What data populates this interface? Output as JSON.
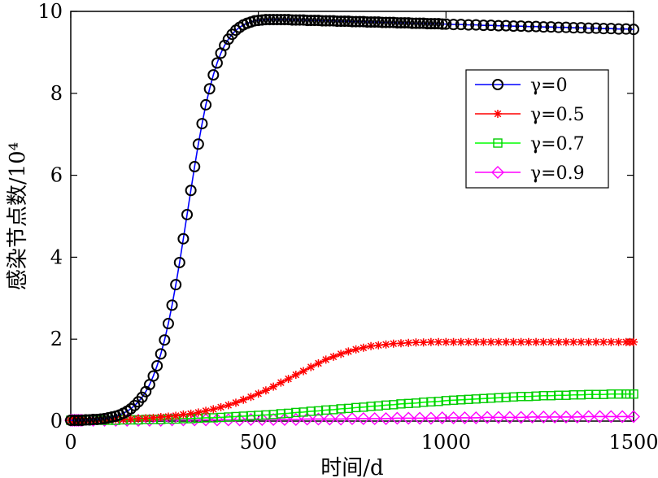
{
  "chart_data": {
    "type": "line",
    "xlabel": "时间/d",
    "ylabel": "感染节点数/10⁴",
    "xlim": [
      0,
      1500
    ],
    "ylim": [
      0,
      10
    ],
    "xticks": [
      0,
      500,
      1000,
      1500
    ],
    "yticks": [
      0,
      2,
      4,
      6,
      8,
      10
    ],
    "grid": false,
    "legend_position": "top-right",
    "series": [
      {
        "name": "γ=0",
        "line_color": "#0000ff",
        "marker": "circle",
        "marker_color": "#000000",
        "x": [
          0,
          10,
          20,
          30,
          40,
          50,
          60,
          70,
          80,
          90,
          100,
          110,
          120,
          130,
          140,
          150,
          160,
          170,
          180,
          190,
          200,
          210,
          220,
          230,
          240,
          250,
          260,
          270,
          280,
          290,
          300,
          310,
          320,
          330,
          340,
          350,
          360,
          370,
          380,
          390,
          400,
          410,
          420,
          430,
          440,
          450,
          460,
          470,
          480,
          490,
          500,
          510,
          520,
          530,
          540,
          550,
          560,
          570,
          580,
          590,
          600,
          610,
          620,
          630,
          640,
          650,
          660,
          670,
          680,
          690,
          700,
          710,
          720,
          730,
          740,
          750,
          760,
          770,
          780,
          790,
          800,
          810,
          820,
          830,
          840,
          850,
          860,
          870,
          880,
          890,
          900,
          910,
          920,
          930,
          940,
          950,
          960,
          970,
          980,
          990,
          1000,
          1020,
          1040,
          1060,
          1080,
          1100,
          1120,
          1140,
          1160,
          1180,
          1200,
          1220,
          1240,
          1260,
          1280,
          1300,
          1320,
          1340,
          1360,
          1380,
          1400,
          1420,
          1440,
          1460,
          1480,
          1500
        ],
        "y": [
          0.02,
          0.02,
          0.02,
          0.02,
          0.03,
          0.03,
          0.04,
          0.04,
          0.05,
          0.06,
          0.08,
          0.1,
          0.12,
          0.15,
          0.19,
          0.24,
          0.3,
          0.38,
          0.47,
          0.58,
          0.72,
          0.89,
          1.1,
          1.35,
          1.64,
          1.98,
          2.38,
          2.83,
          3.33,
          3.87,
          4.45,
          5.04,
          5.63,
          6.21,
          6.76,
          7.26,
          7.72,
          8.11,
          8.45,
          8.74,
          8.98,
          9.17,
          9.32,
          9.44,
          9.54,
          9.61,
          9.67,
          9.71,
          9.74,
          9.77,
          9.78,
          9.79,
          9.8,
          9.8,
          9.8,
          9.8,
          9.8,
          9.8,
          9.8,
          9.79,
          9.79,
          9.79,
          9.79,
          9.78,
          9.78,
          9.78,
          9.78,
          9.77,
          9.77,
          9.77,
          9.77,
          9.76,
          9.76,
          9.76,
          9.76,
          9.75,
          9.75,
          9.75,
          9.75,
          9.74,
          9.74,
          9.74,
          9.74,
          9.73,
          9.73,
          9.73,
          9.73,
          9.72,
          9.72,
          9.72,
          9.72,
          9.71,
          9.71,
          9.71,
          9.71,
          9.7,
          9.7,
          9.7,
          9.7,
          9.69,
          9.69,
          9.68,
          9.68,
          9.67,
          9.67,
          9.66,
          9.66,
          9.65,
          9.65,
          9.64,
          9.64,
          9.63,
          9.63,
          9.62,
          9.62,
          9.61,
          9.61,
          9.6,
          9.6,
          9.59,
          9.59,
          9.58,
          9.58,
          9.57,
          9.57,
          9.56
        ]
      },
      {
        "name": "γ=0.5",
        "line_color": "#ff0000",
        "marker": "asterisk",
        "marker_color": "#ff0000",
        "x": [
          0,
          5,
          10,
          15,
          20,
          25,
          30,
          40,
          60,
          80,
          100,
          120,
          140,
          160,
          180,
          200,
          220,
          240,
          260,
          280,
          300,
          320,
          340,
          360,
          380,
          400,
          420,
          440,
          460,
          480,
          500,
          520,
          540,
          560,
          580,
          600,
          620,
          640,
          660,
          680,
          700,
          720,
          740,
          760,
          780,
          800,
          820,
          840,
          860,
          880,
          900,
          920,
          940,
          960,
          980,
          1000,
          1020,
          1040,
          1060,
          1080,
          1100,
          1120,
          1140,
          1160,
          1180,
          1200,
          1220,
          1240,
          1260,
          1280,
          1300,
          1320,
          1340,
          1360,
          1380,
          1400,
          1420,
          1440,
          1460,
          1480,
          1490,
          1500
        ],
        "y": [
          0.02,
          0.02,
          0.02,
          0.02,
          0.02,
          0.02,
          0.02,
          0.02,
          0.02,
          0.03,
          0.03,
          0.04,
          0.04,
          0.05,
          0.06,
          0.07,
          0.08,
          0.1,
          0.11,
          0.13,
          0.16,
          0.18,
          0.21,
          0.25,
          0.29,
          0.34,
          0.39,
          0.45,
          0.52,
          0.59,
          0.67,
          0.75,
          0.84,
          0.94,
          1.03,
          1.13,
          1.22,
          1.32,
          1.41,
          1.5,
          1.57,
          1.64,
          1.7,
          1.75,
          1.79,
          1.83,
          1.85,
          1.87,
          1.89,
          1.9,
          1.91,
          1.92,
          1.92,
          1.93,
          1.93,
          1.93,
          1.93,
          1.93,
          1.93,
          1.93,
          1.93,
          1.93,
          1.93,
          1.93,
          1.93,
          1.93,
          1.93,
          1.93,
          1.93,
          1.93,
          1.93,
          1.93,
          1.93,
          1.93,
          1.93,
          1.93,
          1.93,
          1.93,
          1.93,
          1.93,
          1.93,
          1.93
        ]
      },
      {
        "name": "γ=0.7",
        "line_color": "#00ff00",
        "marker": "square",
        "marker_color": "#00cc00",
        "x": [
          0,
          5,
          10,
          15,
          20,
          25,
          30,
          40,
          60,
          80,
          100,
          120,
          140,
          160,
          180,
          200,
          220,
          240,
          260,
          280,
          300,
          320,
          340,
          360,
          380,
          400,
          420,
          440,
          460,
          480,
          500,
          520,
          540,
          560,
          580,
          600,
          620,
          640,
          660,
          680,
          700,
          720,
          740,
          760,
          780,
          800,
          820,
          840,
          860,
          880,
          900,
          920,
          940,
          960,
          980,
          1000,
          1020,
          1040,
          1060,
          1080,
          1100,
          1120,
          1140,
          1160,
          1180,
          1200,
          1220,
          1240,
          1260,
          1280,
          1300,
          1320,
          1340,
          1360,
          1380,
          1400,
          1420,
          1440,
          1460,
          1480,
          1490,
          1500
        ],
        "y": [
          0.02,
          0.02,
          0.02,
          0.02,
          0.02,
          0.02,
          0.02,
          0.02,
          0.02,
          0.02,
          0.02,
          0.02,
          0.03,
          0.03,
          0.03,
          0.04,
          0.04,
          0.04,
          0.05,
          0.05,
          0.06,
          0.06,
          0.07,
          0.08,
          0.08,
          0.09,
          0.1,
          0.11,
          0.12,
          0.13,
          0.14,
          0.15,
          0.16,
          0.18,
          0.19,
          0.21,
          0.22,
          0.24,
          0.25,
          0.27,
          0.28,
          0.3,
          0.31,
          0.33,
          0.34,
          0.36,
          0.37,
          0.39,
          0.4,
          0.42,
          0.43,
          0.44,
          0.46,
          0.47,
          0.48,
          0.5,
          0.51,
          0.52,
          0.53,
          0.54,
          0.55,
          0.56,
          0.57,
          0.58,
          0.59,
          0.6,
          0.6,
          0.61,
          0.62,
          0.62,
          0.63,
          0.63,
          0.64,
          0.64,
          0.65,
          0.65,
          0.65,
          0.66,
          0.66,
          0.66,
          0.66,
          0.66
        ]
      },
      {
        "name": "γ=0.9",
        "line_color": "#ff00ff",
        "marker": "diamond",
        "marker_color": "#ff00ff",
        "x": [
          0,
          5,
          10,
          15,
          20,
          25,
          30,
          60,
          90,
          120,
          150,
          180,
          210,
          240,
          270,
          300,
          330,
          360,
          390,
          420,
          450,
          480,
          510,
          540,
          570,
          600,
          630,
          660,
          690,
          720,
          750,
          780,
          810,
          840,
          870,
          900,
          930,
          960,
          990,
          1020,
          1050,
          1080,
          1110,
          1140,
          1170,
          1200,
          1230,
          1260,
          1290,
          1320,
          1350,
          1380,
          1410,
          1440,
          1470,
          1500
        ],
        "y": [
          0.02,
          0.02,
          0.02,
          0.02,
          0.02,
          0.02,
          0.02,
          0.02,
          0.02,
          0.02,
          0.02,
          0.02,
          0.02,
          0.02,
          0.03,
          0.03,
          0.03,
          0.03,
          0.03,
          0.03,
          0.03,
          0.04,
          0.04,
          0.04,
          0.04,
          0.04,
          0.05,
          0.05,
          0.05,
          0.05,
          0.06,
          0.06,
          0.06,
          0.06,
          0.07,
          0.07,
          0.07,
          0.07,
          0.08,
          0.08,
          0.08,
          0.08,
          0.09,
          0.09,
          0.09,
          0.09,
          0.1,
          0.1,
          0.1,
          0.1,
          0.1,
          0.11,
          0.11,
          0.11,
          0.11,
          0.11
        ]
      }
    ]
  }
}
